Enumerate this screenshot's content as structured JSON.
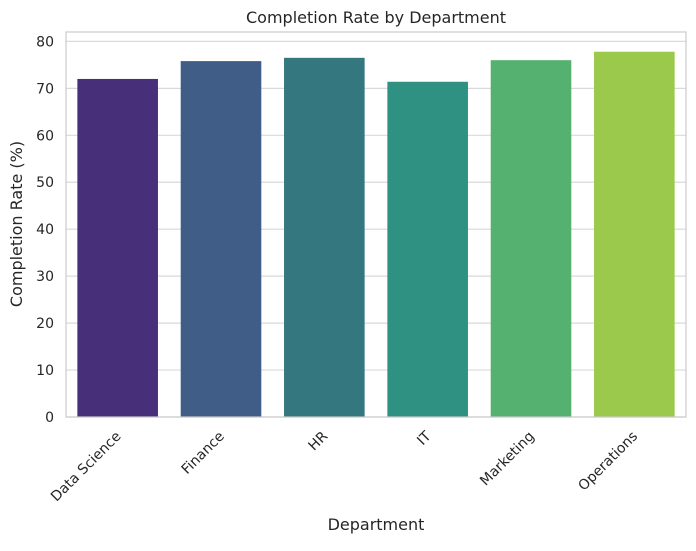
{
  "chart_data": {
    "type": "bar",
    "title": "Completion Rate by Department",
    "xlabel": "Department",
    "ylabel": "Completion Rate (%)",
    "categories": [
      "Data Science",
      "Finance",
      "HR",
      "IT",
      "Marketing",
      "Operations"
    ],
    "values": [
      72.0,
      75.8,
      76.5,
      71.4,
      76.0,
      77.8
    ],
    "colors": [
      "#482f7a",
      "#3f5d87",
      "#34777f",
      "#2f9181",
      "#55b16f",
      "#9bc94c"
    ],
    "ylim": [
      0,
      82
    ],
    "yticks": [
      0,
      10,
      20,
      30,
      40,
      50,
      60,
      70,
      80
    ],
    "grid": "horizontal",
    "legend": "none"
  }
}
